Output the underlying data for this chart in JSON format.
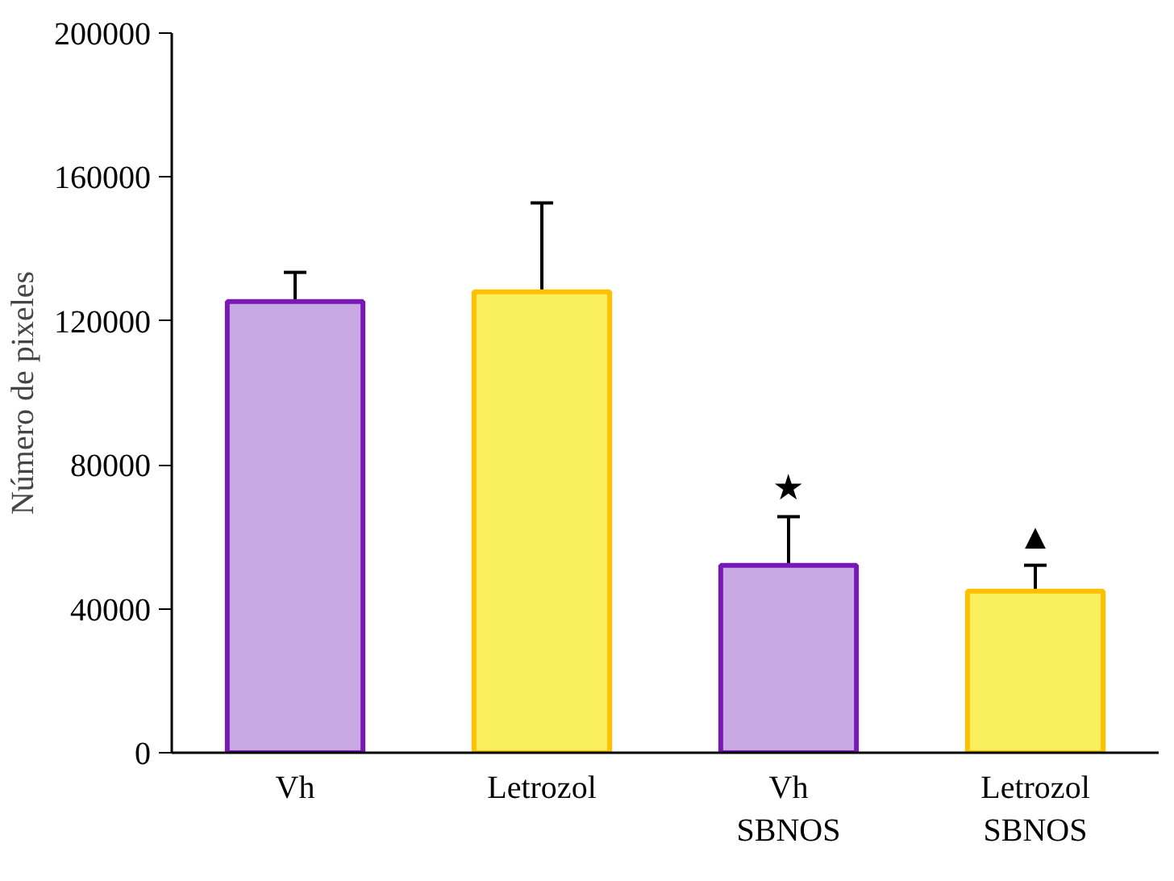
{
  "chart_data": {
    "type": "bar",
    "ylabel": "Número de pixeles",
    "categories": [
      "Vh",
      "Letrozol",
      "Vh SBNOS",
      "Letrozol SBNOS"
    ],
    "values": [
      125400,
      128100,
      52100,
      44900
    ],
    "errors": [
      8100,
      24700,
      13500,
      7200
    ],
    "colors": [
      "#c9a9e3",
      "#f9ef5f",
      "#c9a9e3",
      "#f9ef5f"
    ],
    "ylim": [
      0,
      200000
    ],
    "yticks": [
      0,
      40000,
      80000,
      120000,
      160000,
      200000
    ],
    "grid": false,
    "annotations": [
      "★",
      "▲"
    ]
  }
}
